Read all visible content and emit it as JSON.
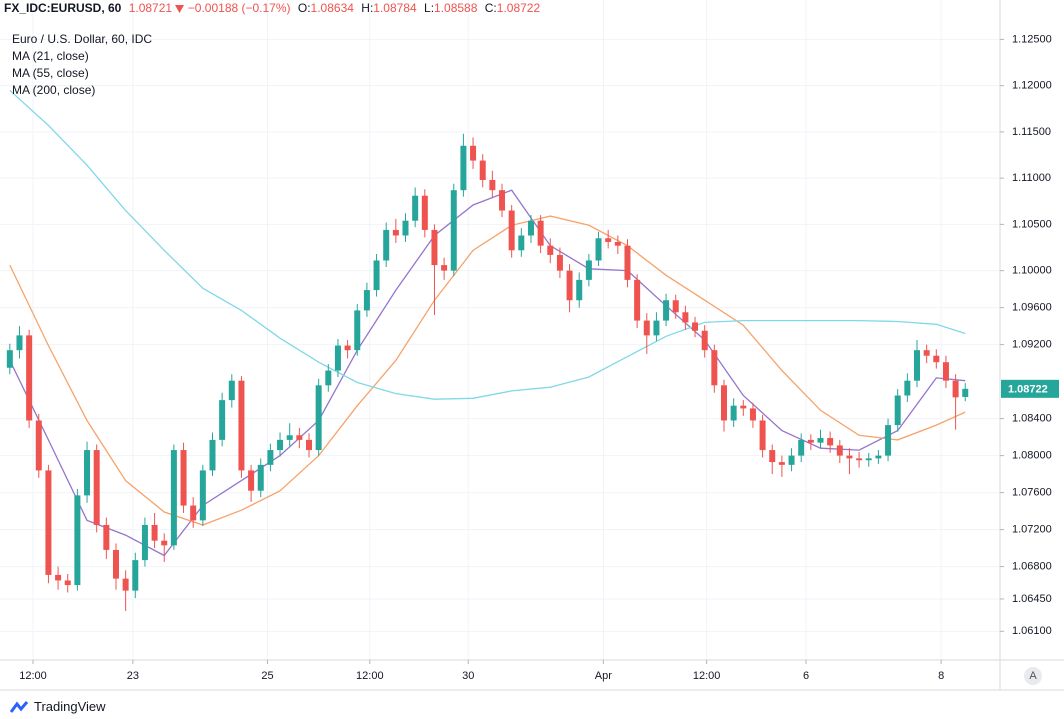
{
  "chart_data": {
    "type": "candlestick",
    "symbol": "FX_IDC:EURUSD, 60",
    "last": 1.08721,
    "change": "−0.00188 (−0.17%)",
    "ohlc_labels": [
      "O:",
      "H:",
      "L:",
      "C:"
    ],
    "title": "Euro / U.S. Dollar, 60, IDC",
    "up_color": "#26a69a",
    "down_color": "#ef5350",
    "open": [
      1.0895,
      1.0914,
      1.093,
      1.0838,
      1.0784,
      1.0671,
      1.0665,
      1.066,
      1.0757,
      1.0806,
      1.0725,
      1.0698,
      1.0667,
      1.0654,
      1.0687,
      1.0725,
      1.0708,
      1.0703,
      1.0806,
      1.0746,
      1.073,
      1.0784,
      1.0817,
      1.086,
      1.0881,
      1.0784,
      1.0762,
      1.079,
      1.0806,
      1.0817,
      1.0822,
      1.0817,
      1.0806,
      1.0876,
      1.0892,
      1.0919,
      1.0914,
      1.0957,
      1.0979,
      1.1011,
      1.1044,
      1.1038,
      1.1054,
      1.1081,
      1.1044,
      1.1006,
      1.1,
      1.1087,
      1.1135,
      1.1119,
      1.1098,
      1.1087,
      1.1065,
      1.1022,
      1.1038,
      1.1054,
      1.1027,
      1.1017,
      1.1,
      1.0968,
      1.099,
      1.1011,
      1.1035,
      1.1031,
      1.1027,
      1.099,
      1.0946,
      1.093,
      1.0946,
      1.0968,
      1.0955,
      1.0944,
      1.0935,
      1.0914,
      1.0876,
      1.0838,
      1.0854,
      1.0851,
      1.0838,
      1.0806,
      1.0793,
      1.079,
      1.08,
      1.0817,
      1.0814,
      1.0819,
      1.0811,
      1.08,
      1.0797,
      1.0795,
      1.0797,
      1.08,
      1.0833,
      1.0865,
      1.0881,
      1.0914,
      1.0908,
      1.0901,
      1.0881,
      1.08634
    ],
    "high": [
      1.0921,
      1.094,
      1.0936,
      1.0845,
      1.079,
      1.068,
      1.0672,
      1.0764,
      1.0815,
      1.0812,
      1.0733,
      1.0705,
      1.0676,
      1.0695,
      1.0733,
      1.0738,
      1.0716,
      1.0812,
      1.0814,
      1.0755,
      1.079,
      1.0825,
      1.0868,
      1.0888,
      1.0886,
      1.079,
      1.0797,
      1.0813,
      1.0825,
      1.0835,
      1.083,
      1.0824,
      1.0883,
      1.0899,
      1.0926,
      1.0925,
      1.0964,
      1.0987,
      1.1018,
      1.1052,
      1.1056,
      1.1062,
      1.109,
      1.1088,
      1.105,
      1.1014,
      1.1094,
      1.1148,
      1.1144,
      1.1126,
      1.1108,
      1.1094,
      1.1071,
      1.1046,
      1.106,
      1.106,
      1.1035,
      1.1025,
      1.1007,
      1.0998,
      1.1018,
      1.1042,
      1.1044,
      1.1038,
      1.1034,
      1.0996,
      1.0954,
      1.0955,
      1.0975,
      1.0974,
      1.0962,
      1.095,
      1.0941,
      1.092,
      1.0882,
      1.0862,
      1.086,
      1.0857,
      1.0844,
      1.0812,
      1.08,
      1.0808,
      1.0824,
      1.0823,
      1.0828,
      1.0826,
      1.0817,
      1.0808,
      1.0804,
      1.0803,
      1.0806,
      1.084,
      1.0872,
      1.0889,
      1.0925,
      1.092,
      1.0915,
      1.0908,
      1.0888,
      1.08784
    ],
    "low": [
      1.0888,
      1.0905,
      1.083,
      1.0776,
      1.0662,
      1.0655,
      1.0652,
      1.0654,
      1.0749,
      1.0717,
      1.0688,
      1.0655,
      1.0632,
      1.0646,
      1.068,
      1.07,
      1.0685,
      1.0698,
      1.0738,
      1.0722,
      1.0724,
      1.0778,
      1.081,
      1.0852,
      1.0776,
      1.075,
      1.0755,
      1.0783,
      1.0799,
      1.081,
      1.0808,
      1.0798,
      1.08,
      1.0869,
      1.0885,
      1.0905,
      1.0908,
      1.095,
      1.0972,
      1.1004,
      1.103,
      1.1031,
      1.1047,
      1.1036,
      1.0952,
      1.099,
      1.0994,
      1.108,
      1.111,
      1.109,
      1.1079,
      1.1058,
      1.1014,
      1.1015,
      1.103,
      1.1019,
      1.1008,
      1.0992,
      1.0955,
      1.096,
      1.0983,
      1.1005,
      1.1024,
      1.1018,
      1.0982,
      1.0938,
      1.091,
      1.0924,
      1.094,
      1.0948,
      1.0936,
      1.0928,
      1.0906,
      1.0868,
      1.0826,
      1.0831,
      1.0843,
      1.083,
      1.0798,
      1.078,
      1.0777,
      1.0783,
      1.0793,
      1.0806,
      1.0808,
      1.0803,
      1.0792,
      1.078,
      1.0787,
      1.0788,
      1.0791,
      1.0794,
      1.0826,
      1.0858,
      1.0874,
      1.09,
      1.0894,
      1.0873,
      1.0828,
      1.08588
    ],
    "close": [
      1.0914,
      1.093,
      1.0838,
      1.0784,
      1.0671,
      1.0665,
      1.066,
      1.0757,
      1.0806,
      1.0725,
      1.0698,
      1.0667,
      1.0654,
      1.0687,
      1.0725,
      1.0708,
      1.0703,
      1.0806,
      1.0746,
      1.073,
      1.0784,
      1.0817,
      1.086,
      1.0881,
      1.0784,
      1.0762,
      1.079,
      1.0806,
      1.0817,
      1.0822,
      1.0817,
      1.0806,
      1.0876,
      1.0892,
      1.0919,
      1.0914,
      1.0957,
      1.0979,
      1.1011,
      1.1044,
      1.1038,
      1.1054,
      1.1081,
      1.1044,
      1.1006,
      1.1,
      1.1087,
      1.1135,
      1.1119,
      1.1098,
      1.1087,
      1.1065,
      1.1022,
      1.1038,
      1.1054,
      1.1027,
      1.1017,
      1.1,
      1.0968,
      1.099,
      1.1011,
      1.1035,
      1.1031,
      1.1027,
      1.099,
      1.0946,
      1.093,
      1.0946,
      1.0968,
      1.0955,
      1.0944,
      1.0935,
      1.0914,
      1.0876,
      1.0838,
      1.0854,
      1.0851,
      1.0838,
      1.0806,
      1.0793,
      1.079,
      1.08,
      1.0817,
      1.0814,
      1.0819,
      1.0811,
      1.08,
      1.0797,
      1.0795,
      1.0797,
      1.08,
      1.0833,
      1.0865,
      1.0881,
      1.0914,
      1.0908,
      1.0901,
      1.0881,
      1.0863,
      1.08722
    ],
    "series": [
      {
        "name": "MA (21, close)",
        "color": "#9575cd",
        "x": [
          0,
          4,
          8,
          12,
          16,
          20,
          24,
          28,
          32,
          36,
          40,
          44,
          48,
          52,
          56,
          60,
          64,
          68,
          72,
          76,
          80,
          84,
          88,
          92,
          96,
          99
        ],
        "values": [
          1.0903,
          1.0817,
          1.073,
          1.0714,
          1.0692,
          1.0746,
          1.0773,
          1.08,
          1.0838,
          1.0914,
          1.0979,
          1.1038,
          1.1071,
          1.1087,
          1.1027,
          1.1002,
          1.1,
          1.0962,
          1.0925,
          1.0865,
          1.0827,
          1.0808,
          1.0806,
          1.0827,
          1.0884,
          1.0881
        ]
      },
      {
        "name": "MA (55, close)",
        "color": "#f7a26a",
        "x": [
          0,
          4,
          8,
          12,
          16,
          20,
          24,
          28,
          32,
          36,
          40,
          44,
          48,
          52,
          56,
          60,
          64,
          68,
          72,
          76,
          80,
          84,
          88,
          92,
          96,
          99
        ],
        "values": [
          1.1006,
          1.0919,
          1.0838,
          1.0773,
          1.0739,
          1.0725,
          1.0741,
          1.0762,
          1.08,
          1.0854,
          1.0903,
          1.0968,
          1.1022,
          1.1049,
          1.1059,
          1.1049,
          1.1027,
          1.0995,
          1.0968,
          1.0941,
          1.0892,
          1.0849,
          1.0822,
          1.0817,
          1.0833,
          1.0847
        ]
      },
      {
        "name": "MA (200, close)",
        "color": "#80d8e8",
        "x": [
          0,
          4,
          8,
          12,
          16,
          20,
          24,
          28,
          32,
          36,
          40,
          44,
          48,
          52,
          56,
          60,
          64,
          68,
          72,
          76,
          80,
          84,
          88,
          92,
          96,
          99
        ],
        "values": [
          1.1195,
          1.1157,
          1.1114,
          1.1065,
          1.1022,
          1.0981,
          1.0957,
          1.0927,
          1.0901,
          1.0879,
          1.0867,
          1.0861,
          1.0862,
          1.087,
          1.0874,
          1.0885,
          1.0907,
          1.0929,
          1.0944,
          1.0946,
          1.0946,
          1.0946,
          1.0946,
          1.0945,
          1.0942,
          1.0932
        ]
      }
    ],
    "xlim": [
      -0.5,
      102.6
    ],
    "xticks": [
      {
        "value": 2.4,
        "label": "12:00"
      },
      {
        "value": 12.75,
        "label": "23"
      },
      {
        "value": 26.7,
        "label": "25"
      },
      {
        "value": 37.3,
        "label": "12:00"
      },
      {
        "value": 47.5,
        "label": "30"
      },
      {
        "value": 61.5,
        "label": "Apr"
      },
      {
        "value": 72.2,
        "label": "12:00"
      },
      {
        "value": 82.5,
        "label": "6"
      },
      {
        "value": 96.5,
        "label": "8"
      }
    ],
    "ylim": [
      1.0579,
      1.1271
    ],
    "yticks": [
      {
        "value": 1.125,
        "label": "1.12500"
      },
      {
        "value": 1.12,
        "label": "1.12000"
      },
      {
        "value": 1.115,
        "label": "1.11500"
      },
      {
        "value": 1.11,
        "label": "1.11000"
      },
      {
        "value": 1.105,
        "label": "1.10500"
      },
      {
        "value": 1.1,
        "label": "1.10000"
      },
      {
        "value": 1.096,
        "label": "1.09600"
      },
      {
        "value": 1.092,
        "label": "1.09200"
      },
      {
        "value": 1.084,
        "label": "1.08400"
      },
      {
        "value": 1.08,
        "label": "1.08000"
      },
      {
        "value": 1.076,
        "label": "1.07600"
      },
      {
        "value": 1.072,
        "label": "1.07200"
      },
      {
        "value": 1.068,
        "label": "1.06800"
      },
      {
        "value": 1.0645,
        "label": "1.06450"
      },
      {
        "value": 1.061,
        "label": "1.06100"
      }
    ],
    "grid": true,
    "brand": "TradingView",
    "scale_button": "A"
  }
}
